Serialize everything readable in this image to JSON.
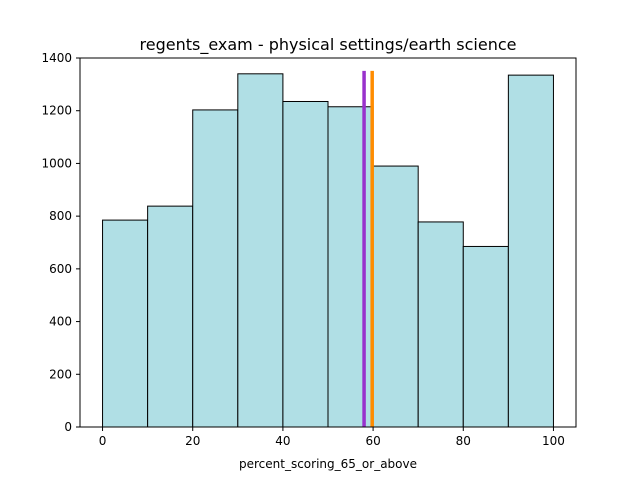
{
  "chart_data": {
    "type": "histogram",
    "title": "regents_exam - physical settings/earth science",
    "xlabel": "percent_scoring_65_or_above",
    "ylabel": "",
    "xlim": [
      -5,
      105
    ],
    "ylim": [
      0,
      1400
    ],
    "xticks": [
      "0",
      "20",
      "40",
      "60",
      "80",
      "100"
    ],
    "yticks": [
      "0",
      "200",
      "400",
      "600",
      "800",
      "1000",
      "1200",
      "1400"
    ],
    "bins": [
      {
        "start": 0,
        "end": 10,
        "count": 785
      },
      {
        "start": 10,
        "end": 20,
        "count": 838
      },
      {
        "start": 20,
        "end": 30,
        "count": 1203
      },
      {
        "start": 30,
        "end": 40,
        "count": 1340
      },
      {
        "start": 40,
        "end": 50,
        "count": 1235
      },
      {
        "start": 50,
        "end": 60,
        "count": 1215
      },
      {
        "start": 60,
        "end": 70,
        "count": 990
      },
      {
        "start": 70,
        "end": 80,
        "count": 778
      },
      {
        "start": 80,
        "end": 90,
        "count": 685
      },
      {
        "start": 90,
        "end": 100,
        "count": 1335
      }
    ],
    "vertical_lines": [
      {
        "x": 58.0,
        "color": "#9932cc"
      },
      {
        "x": 59.8,
        "color": "#ff8c00"
      }
    ],
    "bar_color": "#b0dfe5",
    "edge_color": "#000000",
    "grid": false
  }
}
